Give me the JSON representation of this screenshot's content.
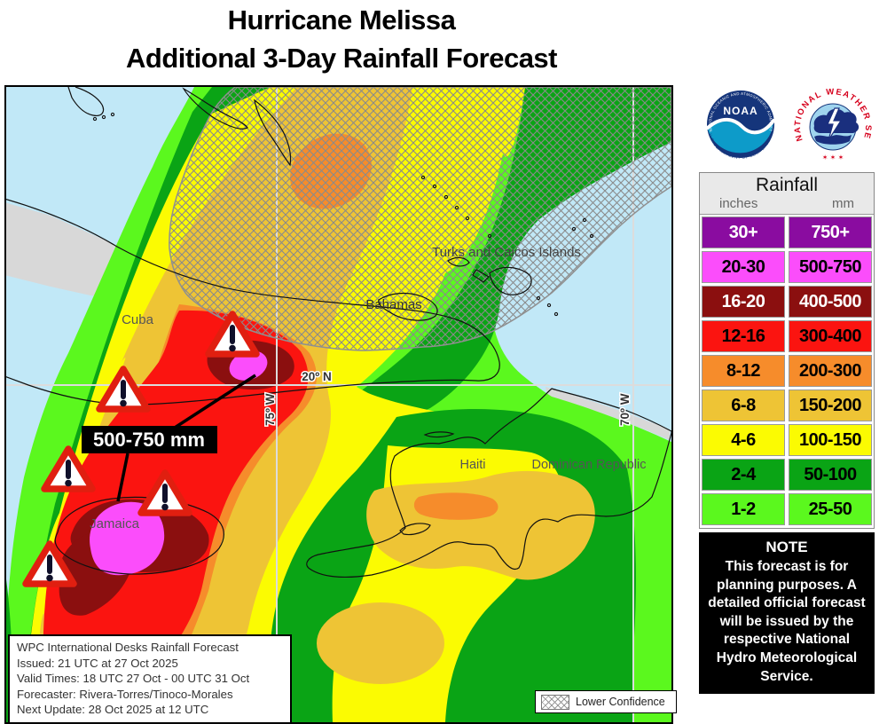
{
  "title": {
    "line1": "Hurricane Melissa",
    "line2": "Additional 3-Day Rainfall Forecast"
  },
  "logos": {
    "noaa": {
      "label": "NOAA",
      "arc_top": "NATIONAL OCEANIC AND ATMOSPHERIC ADMINISTRATION",
      "arc_bottom": "U.S. DEPARTMENT OF COMMERCE"
    },
    "nws": {
      "arc": "NATIONAL WEATHER SERVICE",
      "stars": "✶ ✶ ✶"
    }
  },
  "legend": {
    "title": "Rainfall",
    "col_inches": "inches",
    "col_mm": "mm",
    "rows": [
      {
        "inches": "30+",
        "mm": "750+",
        "color": "#8A0CA0",
        "text": "#FFFFFF"
      },
      {
        "inches": "20-30",
        "mm": "500-750",
        "color": "#FB4DFB",
        "text": "#000000"
      },
      {
        "inches": "16-20",
        "mm": "400-500",
        "color": "#8B0F0F",
        "text": "#FFFFFF"
      },
      {
        "inches": "12-16",
        "mm": "300-400",
        "color": "#FB1410",
        "text": "#000000"
      },
      {
        "inches": "8-12",
        "mm": "200-300",
        "color": "#F68C2B",
        "text": "#000000"
      },
      {
        "inches": "6-8",
        "mm": "150-200",
        "color": "#EEC435",
        "text": "#000000"
      },
      {
        "inches": "4-6",
        "mm": "100-150",
        "color": "#FBFB02",
        "text": "#000000"
      },
      {
        "inches": "2-4",
        "mm": "50-100",
        "color": "#0AA415",
        "text": "#000000"
      },
      {
        "inches": "1-2",
        "mm": "25-50",
        "color": "#5BF81E",
        "text": "#000000"
      }
    ]
  },
  "note": {
    "title": "NOTE",
    "body": "This forecast is for planning purposes. A detailed official forecast will be issued by the respective National Hydro Meteorological Service."
  },
  "map": {
    "colors": {
      "water": "#C1E8F7",
      "land_no_shading": "#D8D8D8",
      "hatch": "#8A8A8A",
      "grid": "#DCDCDC"
    },
    "labels": {
      "cuba": "Cuba",
      "jamaica": "Jamaica",
      "haiti": "Haiti",
      "dominican_republic": "Dominican Republic",
      "turks_and_caicos": "Turks and Caicos Islands",
      "bahamas": "Bahamas"
    },
    "grid_labels": {
      "lat_20n": "20º N",
      "lon_75w": "75º W",
      "lon_70w": "70º W"
    },
    "annotation": "500-750 mm",
    "info_box": {
      "lines": [
        "WPC International Desks Rainfall Forecast",
        "Issued: 21 UTC at 27 Oct 2025",
        "Valid Times: 18 UTC 27 Oct - 00 UTC 31 Oct",
        "Forecaster: Rivera-Torres/Tinoco-Morales",
        "Next Update: 28 Oct 2025 at 12 UTC"
      ]
    },
    "confidence": {
      "label": "Lower Confidence"
    }
  }
}
